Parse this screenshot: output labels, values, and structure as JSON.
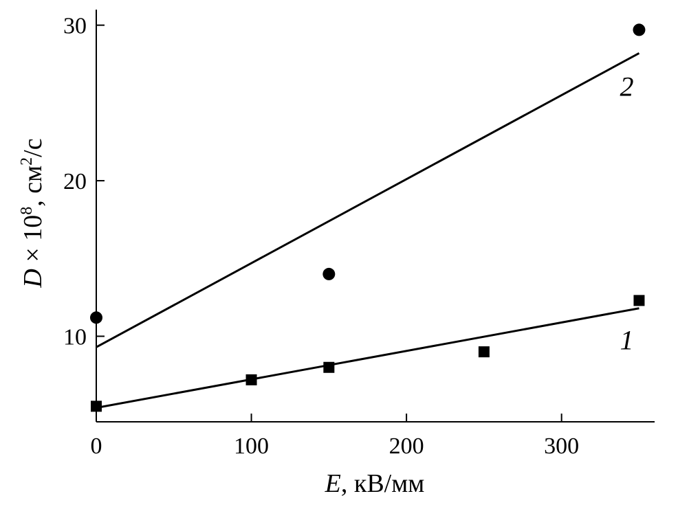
{
  "chart_data": {
    "type": "scatter",
    "xlabel": {
      "symbol": "E",
      "unit": ", кВ/мм"
    },
    "ylabel": {
      "symbol": "D",
      "times": " × 10",
      "exp": "8",
      "unit": ", см",
      "unit_exp": "2",
      "unit_tail": "/с"
    },
    "xlim": [
      0,
      360
    ],
    "ylim": [
      4.5,
      31
    ],
    "xticks": [
      0,
      100,
      200,
      300
    ],
    "yticks": [
      10,
      20,
      30
    ],
    "grid": false,
    "series": [
      {
        "name": "1",
        "marker": "square",
        "points": [
          [
            0,
            5.5
          ],
          [
            100,
            7.2
          ],
          [
            150,
            8.0
          ],
          [
            250,
            9.0
          ],
          [
            350,
            12.3
          ]
        ],
        "fit": [
          [
            0,
            5.4
          ],
          [
            350,
            11.8
          ]
        ]
      },
      {
        "name": "2",
        "marker": "circle",
        "points": [
          [
            0,
            11.2
          ],
          [
            150,
            14.0
          ],
          [
            350,
            29.7
          ]
        ],
        "fit": [
          [
            0,
            9.3
          ],
          [
            350,
            28.2
          ]
        ]
      }
    ]
  }
}
